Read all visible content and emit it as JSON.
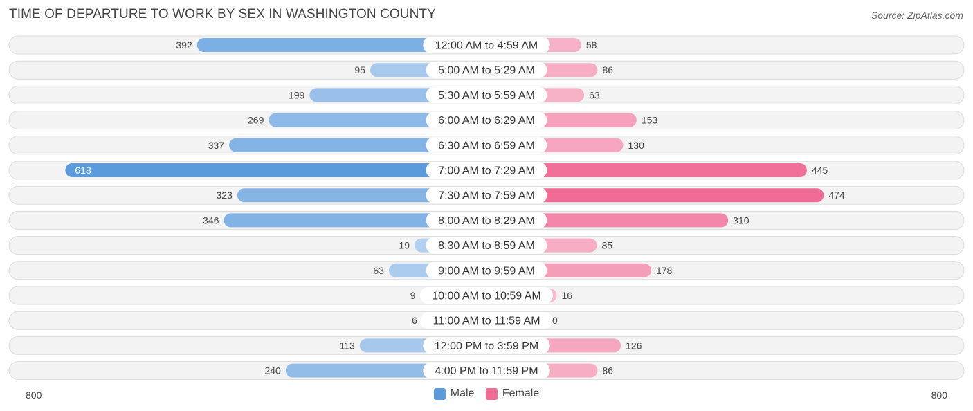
{
  "title": "TIME OF DEPARTURE TO WORK BY SEX IN WASHINGTON COUNTY",
  "source": "Source: ZipAtlas.com",
  "chart_data": {
    "type": "bar",
    "orientation": "horizontal-butterfly",
    "categories": [
      "12:00 AM to 4:59 AM",
      "5:00 AM to 5:29 AM",
      "5:30 AM to 5:59 AM",
      "6:00 AM to 6:29 AM",
      "6:30 AM to 6:59 AM",
      "7:00 AM to 7:29 AM",
      "7:30 AM to 7:59 AM",
      "8:00 AM to 8:29 AM",
      "8:30 AM to 8:59 AM",
      "9:00 AM to 9:59 AM",
      "10:00 AM to 10:59 AM",
      "11:00 AM to 11:59 AM",
      "12:00 PM to 3:59 PM",
      "4:00 PM to 11:59 PM"
    ],
    "series": [
      {
        "name": "Male",
        "color": "#5b9bdc",
        "values": [
          392,
          95,
          199,
          269,
          337,
          618,
          323,
          346,
          19,
          63,
          9,
          6,
          113,
          240
        ]
      },
      {
        "name": "Female",
        "color": "#f06b96",
        "values": [
          58,
          86,
          63,
          153,
          130,
          445,
          474,
          310,
          85,
          178,
          16,
          0,
          126,
          86
        ]
      }
    ],
    "axis": {
      "left_label": "800",
      "right_label": "800",
      "max": 800
    },
    "legend": [
      "Male",
      "Female"
    ]
  }
}
